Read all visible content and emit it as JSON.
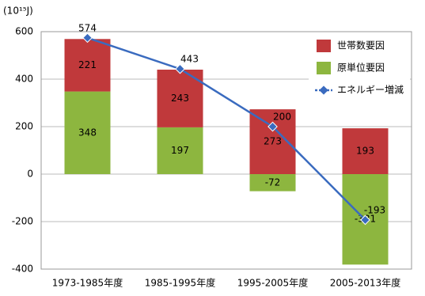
{
  "chart_data": {
    "type": "bar",
    "stacked": true,
    "unit_label": "(10¹⁵J)",
    "categories": [
      "1973-1985年度",
      "1985-1995年度",
      "1995-2005年度",
      "2005-2013年度"
    ],
    "series": [
      {
        "name": "世帯数要因",
        "color": "#c0393b",
        "values": [
          221,
          243,
          273,
          193
        ]
      },
      {
        "name": "原単位要因",
        "color": "#8db63f",
        "values": [
          348,
          197,
          -72,
          -381
        ]
      },
      {
        "name": "エネルギー増減",
        "type": "line",
        "color": "#3a6bbf",
        "values": [
          574,
          443,
          200,
          -193
        ]
      }
    ],
    "ylim": [
      -400,
      600
    ],
    "yticks": [
      -400,
      -200,
      0,
      200,
      400,
      600
    ],
    "grid": true,
    "legend": "upper right"
  }
}
